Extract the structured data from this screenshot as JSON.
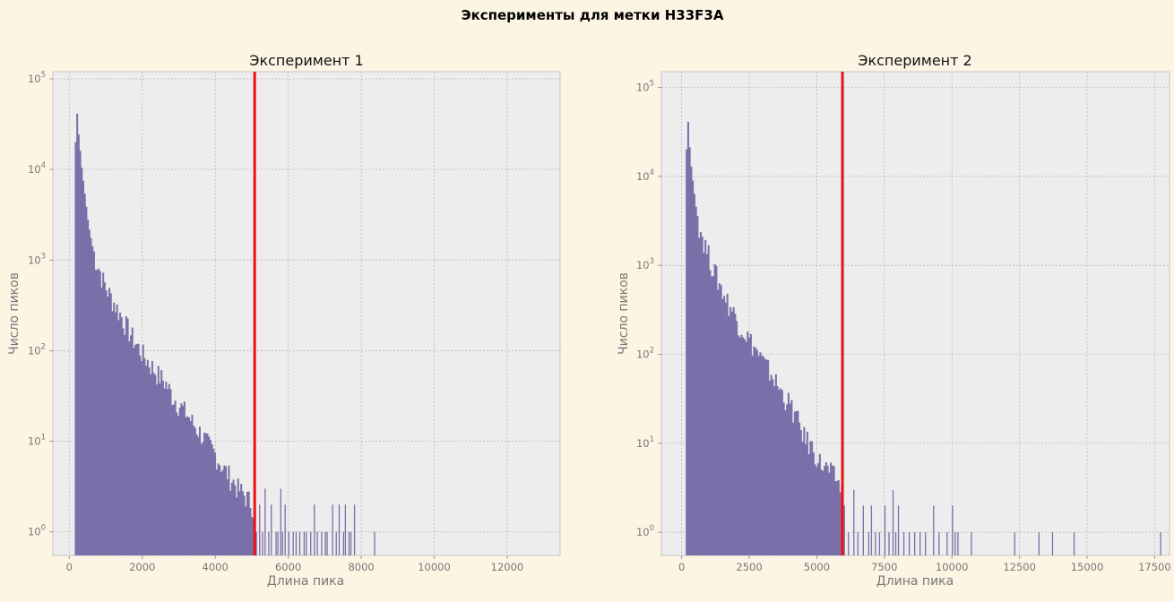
{
  "figure": {
    "suptitle": "Эксперименты для метки H33F3A"
  },
  "chart_data": [
    {
      "type": "bar",
      "title": "Эксперимент 1",
      "xlabel": "Длина пика",
      "ylabel": "Число пиков",
      "xlim": [
        -450,
        13450
      ],
      "ylim": [
        0.55,
        120000
      ],
      "yscale": "log",
      "xticks": [
        "0",
        "2000",
        "4000",
        "6000",
        "8000",
        "10000",
        "12000"
      ],
      "xtick_values": [
        0,
        2000,
        4000,
        6000,
        8000,
        10000,
        12000
      ],
      "yticks": [
        {
          "base": "10",
          "exp": "0",
          "value": 1
        },
        {
          "base": "10",
          "exp": "1",
          "value": 10
        },
        {
          "base": "10",
          "exp": "2",
          "value": 100
        },
        {
          "base": "10",
          "exp": "3",
          "value": 1000
        },
        {
          "base": "10",
          "exp": "4",
          "value": 10000
        },
        {
          "base": "10",
          "exp": "5",
          "value": 100000
        }
      ],
      "grid": true,
      "bar_color": "#7a6fa8",
      "bin_width": 42,
      "histogram": {
        "x": [
          150,
          180,
          200,
          250,
          300,
          400,
          500,
          600,
          700,
          800,
          900,
          1000,
          1200,
          1400,
          1600,
          1800,
          2000,
          2200,
          2400,
          2600,
          2800,
          3000,
          3200,
          3400,
          3600,
          3800,
          4000,
          4200,
          4400,
          4600,
          4800,
          5000,
          5060
        ],
        "y": [
          20000,
          67000,
          30000,
          22000,
          12000,
          5500,
          2500,
          1500,
          1000,
          800,
          600,
          480,
          340,
          240,
          170,
          120,
          90,
          70,
          55,
          45,
          32,
          25,
          20,
          15,
          12,
          9,
          7,
          5,
          4,
          3,
          2.5,
          2,
          1.5
        ]
      },
      "sparse_bars": {
        "x": [
          5110,
          5200,
          5280,
          5350,
          5450,
          5520,
          5650,
          5700,
          5780,
          5830,
          5900,
          6000,
          6120,
          6200,
          6300,
          6420,
          6480,
          6600,
          6700,
          6780,
          6900,
          7000,
          7050,
          7200,
          7300,
          7380,
          7500,
          7550,
          7650,
          7700,
          7800,
          8350
        ],
        "y": [
          1,
          2,
          1,
          3,
          1,
          2,
          1,
          1,
          3,
          1,
          2,
          1,
          1,
          1,
          1,
          1,
          1,
          1,
          2,
          1,
          1,
          1,
          1,
          2,
          1,
          2,
          1,
          2,
          1,
          1,
          2,
          1
        ]
      },
      "threshold_x": 5080,
      "threshold_color": "#ee1111"
    },
    {
      "type": "bar",
      "title": "Эксперимент 2",
      "xlabel": "Длина пика",
      "ylabel": "Число пиков",
      "xlim": [
        -750,
        18050
      ],
      "ylim": [
        0.55,
        150000
      ],
      "yscale": "log",
      "xticks": [
        "0",
        "2500",
        "5000",
        "7500",
        "10000",
        "12500",
        "15000",
        "17500"
      ],
      "xtick_values": [
        0,
        2500,
        5000,
        7500,
        10000,
        12500,
        15000,
        17500
      ],
      "yticks": [
        {
          "base": "10",
          "exp": "0",
          "value": 1
        },
        {
          "base": "10",
          "exp": "1",
          "value": 10
        },
        {
          "base": "10",
          "exp": "2",
          "value": 100
        },
        {
          "base": "10",
          "exp": "3",
          "value": 1000
        },
        {
          "base": "10",
          "exp": "4",
          "value": 10000
        },
        {
          "base": "10",
          "exp": "5",
          "value": 100000
        }
      ],
      "grid": true,
      "bar_color": "#7a6fa8",
      "bin_width": 58,
      "histogram": {
        "x": [
          150,
          180,
          200,
          250,
          300,
          400,
          500,
          600,
          700,
          900,
          1100,
          1300,
          1500,
          1800,
          2100,
          2400,
          2700,
          3000,
          3300,
          3600,
          3900,
          4200,
          4500,
          4800,
          5100,
          5400,
          5700,
          5900
        ],
        "y": [
          20000,
          80000,
          45000,
          25000,
          15000,
          8000,
          4500,
          3000,
          2300,
          1500,
          1000,
          700,
          500,
          330,
          220,
          160,
          115,
          80,
          60,
          40,
          30,
          20,
          12,
          9,
          6,
          5,
          4,
          3
        ]
      },
      "sparse_bars": {
        "x": [
          6000,
          6150,
          6350,
          6500,
          6700,
          6900,
          7000,
          7150,
          7300,
          7500,
          7650,
          7800,
          7900,
          8000,
          8200,
          8400,
          8600,
          8800,
          9000,
          9300,
          9500,
          9800,
          10000,
          10100,
          10200,
          10700,
          12300,
          13200,
          13700,
          14500,
          17700
        ],
        "y": [
          2,
          1,
          3,
          1,
          2,
          1,
          2,
          1,
          1,
          2,
          1,
          3,
          1,
          2,
          1,
          1,
          1,
          1,
          1,
          2,
          1,
          1,
          2,
          1,
          1,
          1,
          1,
          1,
          1,
          1,
          1
        ]
      },
      "threshold_x": 5950,
      "threshold_color": "#ee1111"
    }
  ]
}
